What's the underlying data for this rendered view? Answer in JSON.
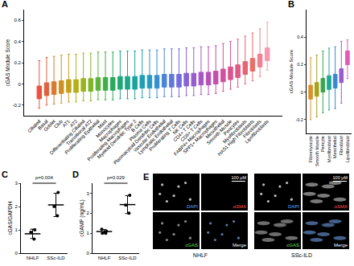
{
  "chart_data": [
    {
      "panel_label": "A",
      "type": "box",
      "y_label": "cGAS Module Score",
      "categories": [
        "Ciliated",
        "Basal",
        "Goblet",
        "Club",
        "AT1",
        "AT2",
        "Differentiating Ciliated",
        "Transitional AT2",
        "Proliferating Epithelial",
        "Mast",
        "Monocytes",
        "Macrophages",
        "Proliferating Macrophages",
        "Myeloid Dendritic Type 2",
        "B Cells",
        "Plasma Cells",
        "Plasmacytoid Dendritic Cells",
        "Vascular Endothelial",
        "Lymphatic Endothelial",
        "Proliferating T Cells",
        "NK Cells",
        "CD4+ T Cells",
        "CD8+ T Cells",
        "FABP4+ Macrophages",
        "SPP1+ Macrophages",
        "Mesothelial",
        "Smooth Muscle",
        "Pericytes",
        "Myofibroblasts",
        "HAS1 High Fibroblasts",
        "Fibroblasts",
        "Lipofibroblasts"
      ],
      "median": [
        -0.08,
        -0.05,
        -0.04,
        -0.03,
        -0.02,
        -0.02,
        -0.01,
        -0.01,
        0,
        0,
        0,
        0.01,
        0.01,
        0.01,
        0.02,
        0.02,
        0.02,
        0.03,
        0.03,
        0.03,
        0.04,
        0.04,
        0.05,
        0.05,
        0.06,
        0.08,
        0.1,
        0.12,
        0.15,
        0.18,
        0.22,
        0.28
      ],
      "q1": [
        -0.14,
        -0.11,
        -0.1,
        -0.09,
        -0.08,
        -0.08,
        -0.07,
        -0.07,
        -0.06,
        -0.06,
        -0.06,
        -0.05,
        -0.05,
        -0.05,
        -0.04,
        -0.04,
        -0.04,
        -0.03,
        -0.03,
        -0.03,
        -0.02,
        -0.02,
        -0.01,
        -0.01,
        0,
        0.02,
        0.04,
        0.06,
        0.09,
        0.12,
        0.16,
        0.22
      ],
      "q3": [
        -0.02,
        0.01,
        0.02,
        0.03,
        0.04,
        0.04,
        0.05,
        0.05,
        0.06,
        0.06,
        0.06,
        0.07,
        0.07,
        0.07,
        0.08,
        0.08,
        0.08,
        0.09,
        0.09,
        0.09,
        0.1,
        0.1,
        0.11,
        0.11,
        0.12,
        0.14,
        0.16,
        0.18,
        0.21,
        0.24,
        0.28,
        0.34
      ],
      "min": [
        -0.23,
        -0.2,
        -0.19,
        -0.18,
        -0.17,
        -0.17,
        -0.16,
        -0.16,
        -0.15,
        -0.15,
        -0.15,
        -0.14,
        -0.14,
        -0.14,
        -0.13,
        -0.13,
        -0.13,
        -0.12,
        -0.12,
        -0.12,
        -0.11,
        -0.11,
        -0.1,
        -0.1,
        -0.09,
        -0.07,
        -0.05,
        -0.03,
        0,
        0.03,
        0.07,
        0.13
      ],
      "max": [
        0.22,
        0.25,
        0.26,
        0.27,
        0.28,
        0.28,
        0.29,
        0.29,
        0.3,
        0.3,
        0.3,
        0.31,
        0.31,
        0.31,
        0.32,
        0.32,
        0.32,
        0.33,
        0.33,
        0.33,
        0.34,
        0.34,
        0.35,
        0.35,
        0.36,
        0.38,
        0.4,
        0.42,
        0.45,
        0.48,
        0.52,
        0.58
      ],
      "colors": [
        "#e8543f",
        "#e0623a",
        "#d97a2c",
        "#cf8f22",
        "#c4a21c",
        "#b5b018",
        "#9cb41c",
        "#7eb52a",
        "#5cb23a",
        "#3fae4a",
        "#2aaa5e",
        "#1fa874",
        "#1aa68a",
        "#1aa39f",
        "#1c9fb3",
        "#2799c4",
        "#368fd0",
        "#4a84d8",
        "#5f78dc",
        "#736cdc",
        "#8662d8",
        "#985ad0",
        "#a854c6",
        "#b751ba",
        "#c450ad",
        "#cf529f",
        "#d85690",
        "#df5c82",
        "#e46475",
        "#e86e6a",
        "#f07f90",
        "#f59ab0"
      ],
      "ylim": [
        -0.3,
        0.7
      ],
      "yticks": [
        -0.2,
        0,
        0.2,
        0.4,
        0.6
      ],
      "grid": false
    },
    {
      "panel_label": "B",
      "type": "box",
      "y_label": "cGAS Module Score",
      "categories": [
        "Fibromyocyte",
        "Smooth Muscle",
        "Pericyte",
        "Myofibroblast",
        "Mesothelial",
        "Fibroblast",
        "Lipofibroblast"
      ],
      "median": [
        0,
        0.02,
        0.05,
        0.07,
        0.08,
        0.12,
        0.25
      ],
      "q1": [
        -0.05,
        -0.03,
        0,
        0.02,
        0.03,
        0.07,
        0.2
      ],
      "q3": [
        0.05,
        0.07,
        0.1,
        0.12,
        0.13,
        0.17,
        0.3
      ],
      "min": [
        -0.2,
        -0.18,
        -0.15,
        -0.13,
        -0.12,
        -0.08,
        0.1
      ],
      "max": [
        0.25,
        0.27,
        0.3,
        0.32,
        0.33,
        0.37,
        0.38
      ],
      "colors": [
        "#d9912a",
        "#a7a21c",
        "#3aa64c",
        "#1fa69a",
        "#3b88d0",
        "#9a5ad0",
        "#e35ab8"
      ],
      "ylim": [
        -0.3,
        0.6
      ],
      "yticks": [
        -0.2,
        0,
        0.2,
        0.4
      ],
      "grid": false
    },
    {
      "panel_label": "C",
      "type": "dot",
      "y_label": "cGAS/GAPDH",
      "categories": [
        "NHLF",
        "SSc-ILD"
      ],
      "values": [
        [
          0.6,
          0.9,
          1.0
        ],
        [
          1.6,
          2.0,
          2.6
        ]
      ],
      "means": [
        0.83,
        2.07
      ],
      "errors": [
        0.2,
        0.5
      ],
      "annotations": [
        "p=0.004"
      ],
      "marker": "circle",
      "color": "#000000",
      "ylim": [
        0,
        3
      ],
      "yticks": [
        0,
        1,
        2,
        3
      ],
      "grid": false
    },
    {
      "panel_label": "D",
      "type": "dot",
      "y_label": "cGAMP (ng/mL)",
      "categories": [
        "NHLF",
        "SSc-ILD"
      ],
      "values": [
        [
          1.0,
          1.1,
          1.2,
          1.0
        ],
        [
          2.0,
          2.4,
          2.9
        ]
      ],
      "means": [
        1.08,
        2.43
      ],
      "errors": [
        0.1,
        0.45
      ],
      "annotations": [
        "p=0.029"
      ],
      "marker": "circle",
      "color": "#000000",
      "ylim": [
        0,
        3.5
      ],
      "yticks": [
        0,
        1,
        2,
        3
      ],
      "grid": false
    }
  ],
  "panel_e": {
    "panel_label": "E",
    "groups": [
      {
        "caption": "NHLF",
        "tiles": [
          "DAPI",
          "αSMA",
          "cGAS",
          "Merge"
        ],
        "scale_bar": "100 μM"
      },
      {
        "caption": "SSc-ILD",
        "tiles": [
          "DAPI",
          "αSMA",
          "cGAS",
          "Merge"
        ],
        "scale_bar": "100 μM"
      }
    ]
  }
}
